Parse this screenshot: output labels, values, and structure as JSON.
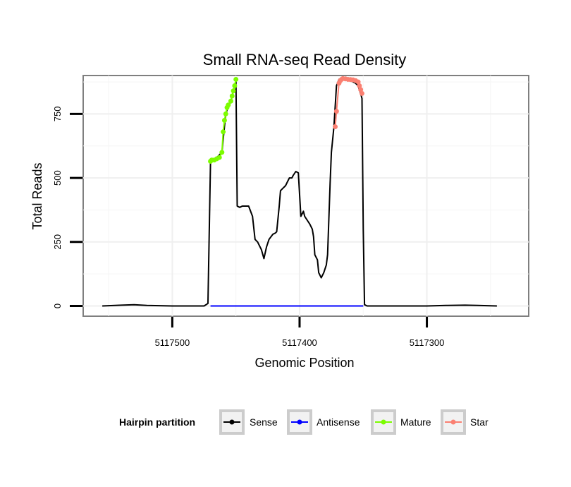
{
  "chart_data": {
    "type": "line",
    "title": "Small RNA-seq Read Density",
    "xlabel": "Genomic Position",
    "ylabel": "Total Reads",
    "x_reversed": true,
    "xlim": [
      5117570,
      5117220
    ],
    "ylim": [
      -40,
      900
    ],
    "x_ticks": [
      5117500,
      5117400,
      5117300
    ],
    "x_tick_labels": [
      "5117500",
      "5117400",
      "5117300"
    ],
    "y_ticks": [
      0,
      250,
      500,
      750
    ],
    "y_tick_labels": [
      "0",
      "250",
      "500",
      "750"
    ],
    "legend": {
      "title": "Hairpin partition",
      "position": "bottom",
      "entries": [
        {
          "label": "Sense",
          "color": "#000000"
        },
        {
          "label": "Antisense",
          "color": "#0000ff"
        },
        {
          "label": "Mature",
          "color": "#7cfc00"
        },
        {
          "label": "Star",
          "color": "#fa8072"
        }
      ]
    },
    "series": [
      {
        "name": "Sense",
        "color": "#000000",
        "points": [
          [
            5117555,
            0
          ],
          [
            5117540,
            3
          ],
          [
            5117530,
            5
          ],
          [
            5117520,
            2
          ],
          [
            5117500,
            0
          ],
          [
            5117475,
            0
          ],
          [
            5117472,
            10
          ],
          [
            5117470,
            560
          ],
          [
            5117468,
            570
          ],
          [
            5117465,
            580
          ],
          [
            5117461,
            600
          ],
          [
            5117459,
            700
          ],
          [
            5117458,
            750
          ],
          [
            5117456,
            780
          ],
          [
            5117454,
            800
          ],
          [
            5117452,
            840
          ],
          [
            5117450,
            880
          ],
          [
            5117449,
            390
          ],
          [
            5117447,
            385
          ],
          [
            5117445,
            390
          ],
          [
            5117440,
            390
          ],
          [
            5117437,
            350
          ],
          [
            5117435,
            260
          ],
          [
            5117433,
            250
          ],
          [
            5117431,
            230
          ],
          [
            5117430,
            220
          ],
          [
            5117428,
            185
          ],
          [
            5117426,
            230
          ],
          [
            5117424,
            260
          ],
          [
            5117421,
            280
          ],
          [
            5117419,
            285
          ],
          [
            5117418,
            290
          ],
          [
            5117416,
            390
          ],
          [
            5117415,
            450
          ],
          [
            5117413,
            460
          ],
          [
            5117411,
            470
          ],
          [
            5117409,
            490
          ],
          [
            5117408,
            500
          ],
          [
            5117406,
            500
          ],
          [
            5117405,
            510
          ],
          [
            5117403,
            525
          ],
          [
            5117401,
            520
          ],
          [
            5117399,
            350
          ],
          [
            5117397,
            370
          ],
          [
            5117396,
            350
          ],
          [
            5117394,
            335
          ],
          [
            5117392,
            320
          ],
          [
            5117390,
            300
          ],
          [
            5117389,
            270
          ],
          [
            5117388,
            200
          ],
          [
            5117386,
            180
          ],
          [
            5117385,
            130
          ],
          [
            5117383,
            110
          ],
          [
            5117381,
            130
          ],
          [
            5117379,
            160
          ],
          [
            5117378,
            200
          ],
          [
            5117376,
            480
          ],
          [
            5117375,
            600
          ],
          [
            5117373,
            700
          ],
          [
            5117371,
            860
          ],
          [
            5117369,
            885
          ],
          [
            5117363,
            885
          ],
          [
            5117360,
            880
          ],
          [
            5117356,
            870
          ],
          [
            5117354,
            860
          ],
          [
            5117352,
            830
          ],
          [
            5117351,
            810
          ],
          [
            5117350,
            300
          ],
          [
            5117349,
            5
          ],
          [
            5117347,
            0
          ],
          [
            5117300,
            0
          ],
          [
            5117285,
            2
          ],
          [
            5117270,
            3
          ],
          [
            5117260,
            2
          ],
          [
            5117245,
            0
          ]
        ]
      },
      {
        "name": "Antisense",
        "color": "#0000ff",
        "points": [
          [
            5117470,
            0
          ],
          [
            5117350,
            0
          ]
        ]
      },
      {
        "name": "Mature",
        "color": "#7cfc00",
        "points": [
          [
            5117470,
            565
          ],
          [
            5117469,
            570
          ],
          [
            5117467,
            570
          ],
          [
            5117465,
            575
          ],
          [
            5117463,
            580
          ],
          [
            5117461,
            600
          ],
          [
            5117460,
            680
          ],
          [
            5117459,
            725
          ],
          [
            5117458,
            750
          ],
          [
            5117457,
            775
          ],
          [
            5117456,
            785
          ],
          [
            5117454,
            800
          ],
          [
            5117453,
            820
          ],
          [
            5117452,
            840
          ],
          [
            5117451,
            860
          ],
          [
            5117450,
            885
          ]
        ]
      },
      {
        "name": "Star",
        "color": "#fa8072",
        "points": [
          [
            5117372,
            700
          ],
          [
            5117371,
            760
          ],
          [
            5117369,
            870
          ],
          [
            5117368,
            880
          ],
          [
            5117367,
            885
          ],
          [
            5117366,
            888
          ],
          [
            5117364,
            887
          ],
          [
            5117362,
            885
          ],
          [
            5117360,
            884
          ],
          [
            5117358,
            883
          ],
          [
            5117356,
            880
          ],
          [
            5117354,
            875
          ],
          [
            5117353,
            860
          ],
          [
            5117352,
            845
          ],
          [
            5117351,
            830
          ]
        ]
      }
    ]
  }
}
